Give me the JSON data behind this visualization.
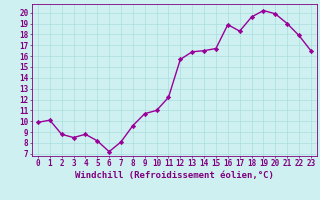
{
  "x": [
    0,
    1,
    2,
    3,
    4,
    5,
    6,
    7,
    8,
    9,
    10,
    11,
    12,
    13,
    14,
    15,
    16,
    17,
    18,
    19,
    20,
    21,
    22,
    23
  ],
  "y": [
    9.9,
    10.1,
    8.8,
    8.5,
    8.8,
    8.2,
    7.2,
    8.1,
    9.6,
    10.7,
    11.0,
    12.2,
    15.7,
    16.4,
    16.5,
    16.7,
    18.9,
    18.3,
    19.6,
    20.2,
    19.9,
    19.0,
    17.9,
    16.5
  ],
  "line_color": "#990099",
  "marker": "D",
  "marker_size": 2.2,
  "linewidth": 1.0,
  "bg_color": "#cff0f0",
  "grid_color": "#aadddd",
  "xlabel": "Windchill (Refroidissement éolien,°C)",
  "xlabel_color": "#800080",
  "xlabel_fontsize": 6.5,
  "ylabel_ticks": [
    7,
    8,
    9,
    10,
    11,
    12,
    13,
    14,
    15,
    16,
    17,
    18,
    19,
    20
  ],
  "xtick_labels": [
    "0",
    "1",
    "2",
    "3",
    "4",
    "5",
    "6",
    "7",
    "8",
    "9",
    "10",
    "11",
    "12",
    "13",
    "14",
    "15",
    "16",
    "17",
    "18",
    "19",
    "20",
    "21",
    "22",
    "23"
  ],
  "ylim": [
    6.8,
    20.8
  ],
  "xlim": [
    -0.5,
    23.5
  ],
  "tick_color": "#800080",
  "tick_fontsize": 5.5,
  "title": ""
}
